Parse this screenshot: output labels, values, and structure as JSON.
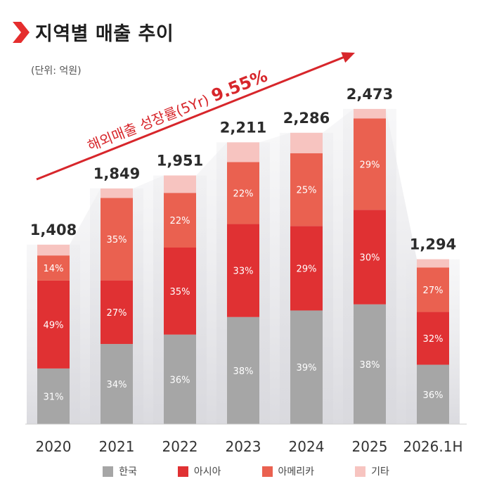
{
  "header": {
    "title": "지역별 매출 추이",
    "unit": "(단위: 억원)"
  },
  "colors": {
    "korea": "#a6a6a6",
    "asia": "#e03133",
    "america": "#ea6150",
    "other": "#f7c4c0",
    "arrow": "#d7262b",
    "title_icon": "#e52d2d"
  },
  "chart_data": {
    "type": "bar",
    "stacked": true,
    "categories": [
      "2020",
      "2021",
      "2022",
      "2023",
      "2024",
      "2025",
      "2026.1H"
    ],
    "totals": [
      1408,
      1849,
      1951,
      2211,
      2286,
      2473,
      1294
    ],
    "total_labels": [
      "1,408",
      "1,849",
      "1,951",
      "2,211",
      "2,286",
      "2,473",
      "1,294"
    ],
    "series": [
      {
        "name": "한국",
        "color_key": "korea",
        "percent": [
          31,
          34,
          36,
          38,
          39,
          38,
          36
        ]
      },
      {
        "name": "아시아",
        "color_key": "asia",
        "percent": [
          49,
          27,
          35,
          33,
          29,
          30,
          32
        ]
      },
      {
        "name": "아메리카",
        "color_key": "america",
        "percent": [
          14,
          35,
          22,
          22,
          25,
          29,
          27
        ]
      },
      {
        "name": "기타",
        "color_key": "other",
        "percent": [
          6,
          4,
          7,
          7,
          7,
          3,
          5
        ]
      }
    ],
    "segment_labels": [
      [
        "31%",
        "34%",
        "36%",
        "38%",
        "39%",
        "38%",
        "36%"
      ],
      [
        "49%",
        "27%",
        "35%",
        "33%",
        "29%",
        "30%",
        "32%"
      ],
      [
        "14%",
        "35%",
        "22%",
        "22%",
        "25%",
        "29%",
        "27%"
      ],
      [
        "",
        "",
        "",
        "",
        "",
        "",
        ""
      ]
    ],
    "growth_annotation": {
      "text": "해외매출 성장률(5Yr)",
      "value": "9.55%"
    },
    "ylim": [
      0,
      2700
    ],
    "legend_position": "bottom"
  }
}
